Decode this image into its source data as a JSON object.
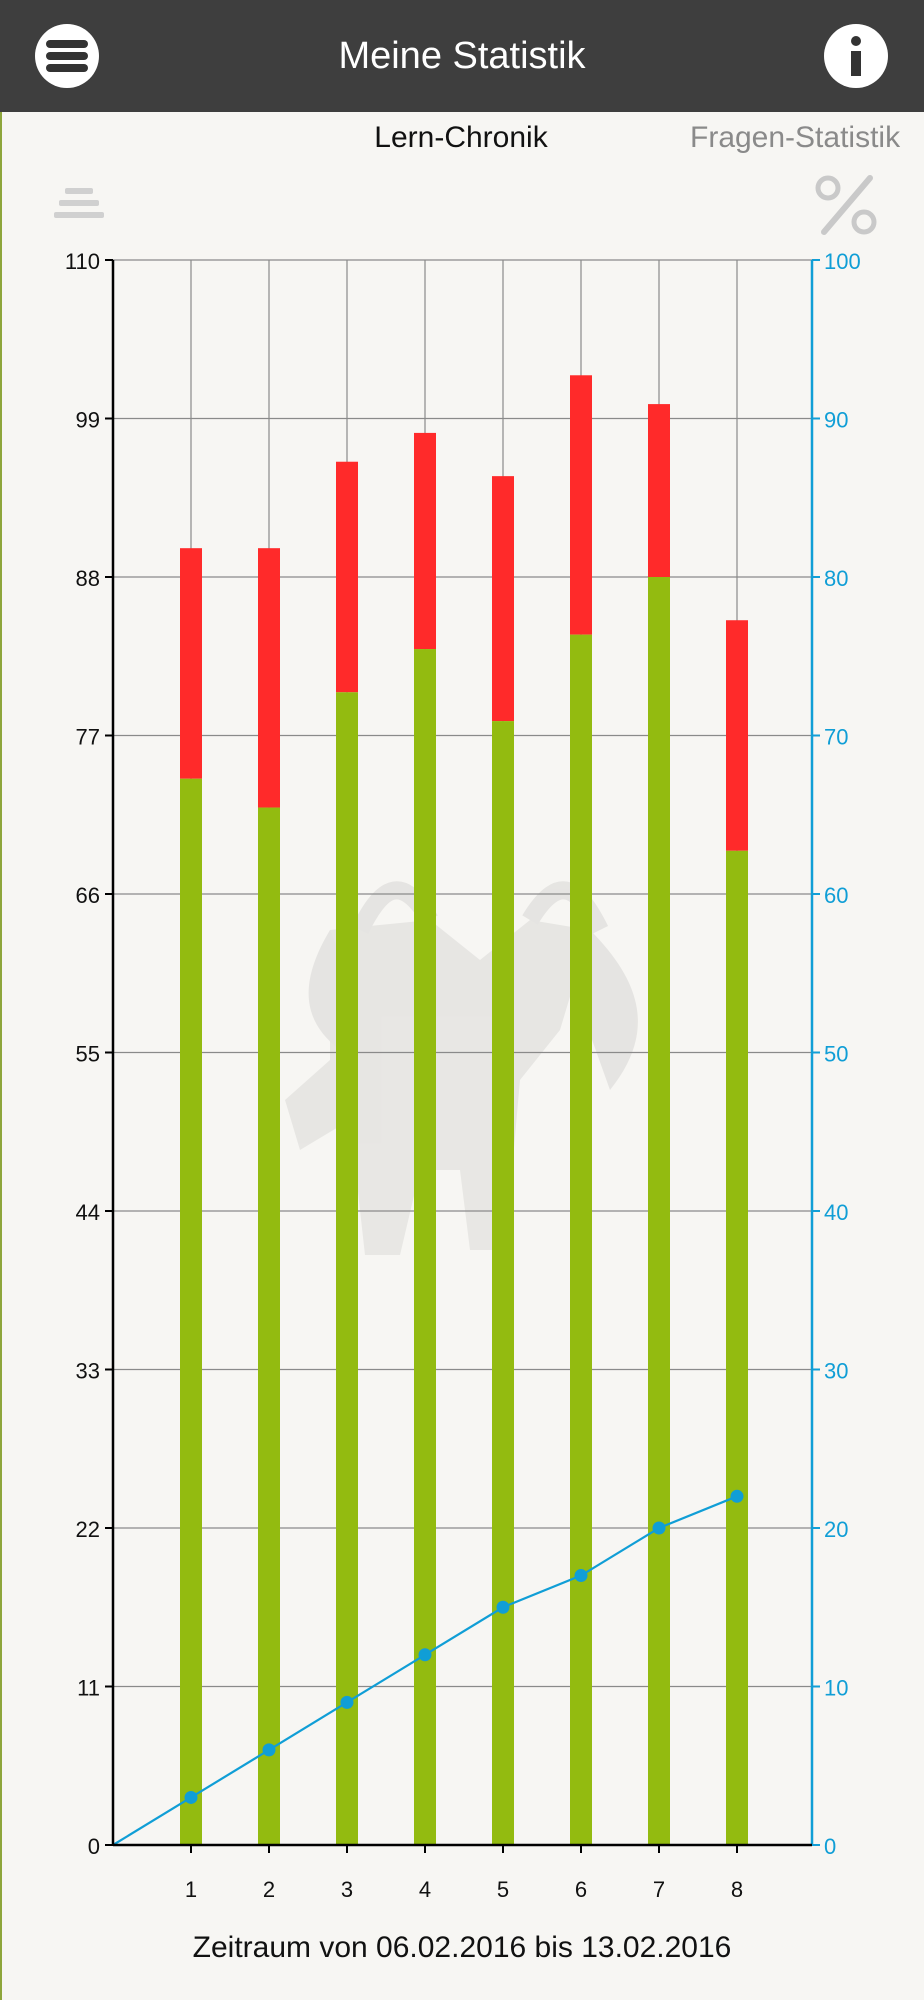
{
  "header": {
    "title": "Meine Statistik",
    "menu_icon": "hamburger-menu-icon",
    "info_icon": "info-icon"
  },
  "tabs": {
    "active_label": "Lern-Chronik",
    "inactive_label": "Fragen-Statistik"
  },
  "toolbar": {
    "list_icon": "list-icon",
    "percent_icon": "percent-icon"
  },
  "colors": {
    "correct": "#93bb10",
    "wrong": "#ff2a2a",
    "line": "#109ed6",
    "axis_right": "#109ed6",
    "grid": "#8a8a8a"
  },
  "chart_data": {
    "type": "bar",
    "categories": [
      "1",
      "2",
      "3",
      "4",
      "5",
      "6",
      "7",
      "8"
    ],
    "left_axis": {
      "range": [
        0,
        110
      ],
      "ticks": [
        "0",
        "11",
        "22",
        "33",
        "44",
        "55",
        "66",
        "77",
        "88",
        "99",
        "110"
      ]
    },
    "right_axis": {
      "range": [
        0,
        100
      ],
      "ticks": [
        "0",
        "10",
        "20",
        "30",
        "40",
        "50",
        "60",
        "70",
        "80",
        "90",
        "100"
      ]
    },
    "series": [
      {
        "type": "stacked-bar-bottom",
        "values": [
          74,
          72,
          80,
          83,
          78,
          84,
          88,
          69
        ]
      },
      {
        "type": "stacked-bar-top",
        "values": [
          16,
          18,
          16,
          15,
          17,
          18,
          12,
          16
        ]
      },
      {
        "type": "line",
        "axis": "right",
        "x": [
          0,
          1,
          2,
          3,
          4,
          5,
          6,
          7,
          8
        ],
        "values": [
          0,
          3,
          6,
          9,
          12,
          15,
          17,
          20,
          22
        ]
      }
    ],
    "grid": true,
    "xlabel": "Zeitraum von 06.02.2016 bis 13.02.2016"
  }
}
